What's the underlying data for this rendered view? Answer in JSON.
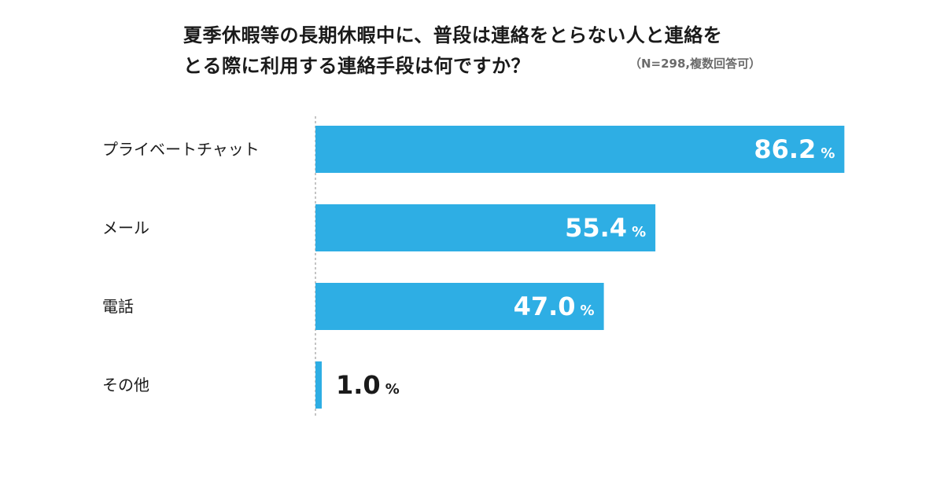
{
  "title": {
    "line1": "夏季休暇等の長期休暇中に、普段は連絡をとらない人と連絡を",
    "line2": "とる際に利用する連絡手段は何ですか？"
  },
  "note": "（N=298,複数回答可）",
  "colors": {
    "bar": "#2eaee4",
    "value_inside": "#ffffff",
    "value_outside": "#1a1a1a",
    "axis": "#888888"
  },
  "chart_data": {
    "type": "bar",
    "orientation": "horizontal",
    "categories": [
      "プライベートチャット",
      "メール",
      "電話",
      "その他"
    ],
    "values": [
      86.2,
      55.4,
      47.0,
      1.0
    ],
    "value_labels": [
      "86.2",
      "55.4",
      "47.0",
      "1.0"
    ],
    "unit": "%",
    "xlim": [
      0,
      100
    ],
    "grid": false,
    "legend": "none"
  }
}
